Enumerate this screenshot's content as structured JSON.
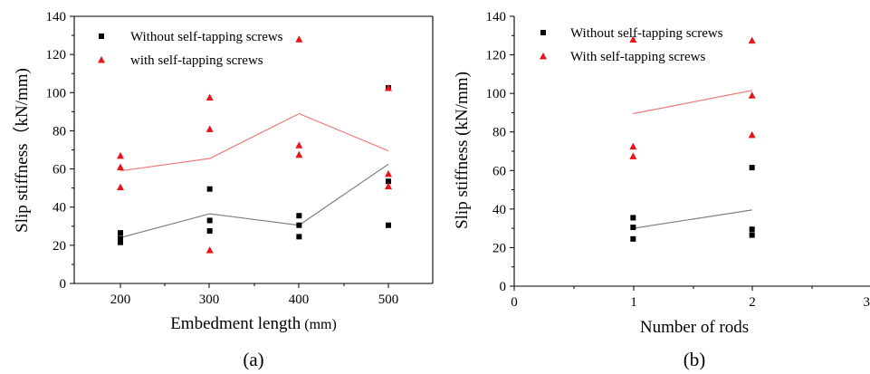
{
  "chart_data": [
    {
      "type": "scatter",
      "panel_label": "(a)",
      "xlabel": "Embedment length",
      "xlabel_unit": "(mm)",
      "ylabel": "Slip stiffness（kN/mm)",
      "x_ticks": [
        "200",
        "300",
        "400",
        "500"
      ],
      "y_ticks": [
        "0",
        "20",
        "40",
        "60",
        "80",
        "100",
        "120",
        "140"
      ],
      "xlim": [
        150,
        550
      ],
      "ylim": [
        0,
        140
      ],
      "legend_position": "top-center",
      "series": [
        {
          "name": "Without self-tapping screws",
          "color": "#000000",
          "marker": "square",
          "points": [
            [
              200,
              26.5
            ],
            [
              200,
              23.5
            ],
            [
              200,
              21.5
            ],
            [
              300,
              49.5
            ],
            [
              300,
              33
            ],
            [
              300,
              27.5
            ],
            [
              400,
              35.5
            ],
            [
              400,
              30.5
            ],
            [
              400,
              24.5
            ],
            [
              500,
              102.5
            ],
            [
              500,
              53.5
            ],
            [
              500,
              30.5
            ]
          ],
          "trend": [
            [
              200,
              24
            ],
            [
              300,
              36.5
            ],
            [
              400,
              30.5
            ],
            [
              500,
              62.5
            ]
          ]
        },
        {
          "name": "with self-tapping screws",
          "color": "#e8141c",
          "marker": "triangle",
          "points": [
            [
              200,
              67
            ],
            [
              200,
              61
            ],
            [
              200,
              50.5
            ],
            [
              300,
              97.5
            ],
            [
              300,
              81
            ],
            [
              300,
              17.5
            ],
            [
              400,
              128
            ],
            [
              400,
              72.5
            ],
            [
              400,
              67.5
            ],
            [
              500,
              102.5
            ],
            [
              500,
              57.5
            ],
            [
              500,
              51
            ]
          ],
          "trend": [
            [
              200,
              59
            ],
            [
              300,
              65.5
            ],
            [
              400,
              89
            ],
            [
              500,
              69.5
            ]
          ]
        }
      ]
    },
    {
      "type": "scatter",
      "panel_label": "(b)",
      "xlabel": "Number of rods",
      "ylabel": "Slip stiffness (kN/mm)",
      "x_ticks": [
        "0",
        "1",
        "2",
        "3"
      ],
      "y_ticks": [
        "0",
        "20",
        "40",
        "60",
        "80",
        "100",
        "120",
        "140"
      ],
      "xlim": [
        0,
        3
      ],
      "ylim": [
        0,
        140
      ],
      "legend_position": "top-center",
      "series": [
        {
          "name": "Without self-tapping screws",
          "color": "#000000",
          "marker": "square",
          "points": [
            [
              1,
              35.5
            ],
            [
              1,
              30.5
            ],
            [
              1,
              24.5
            ],
            [
              2,
              61.5
            ],
            [
              2,
              29.5
            ],
            [
              2,
              26.5
            ]
          ],
          "trend": [
            [
              1,
              30
            ],
            [
              2,
              39.5
            ]
          ]
        },
        {
          "name": "With self-tapping screws",
          "color": "#e8141c",
          "marker": "triangle",
          "points": [
            [
              1,
              128
            ],
            [
              1,
              72.5
            ],
            [
              1,
              67.5
            ],
            [
              2,
              127.5
            ],
            [
              2,
              99
            ],
            [
              2,
              78.5
            ]
          ],
          "trend": [
            [
              1,
              89.5
            ],
            [
              2,
              101.5
            ]
          ]
        }
      ]
    }
  ]
}
